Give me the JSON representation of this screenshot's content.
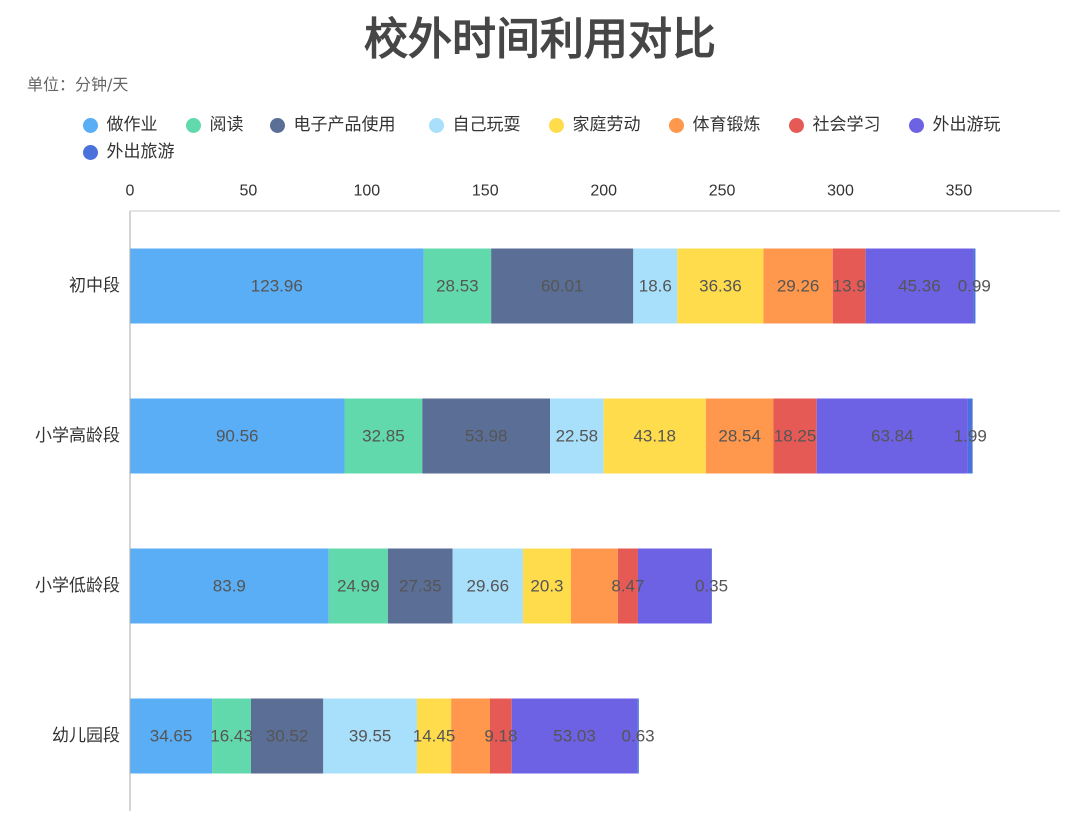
{
  "chart_data": {
    "type": "bar",
    "orientation": "horizontal",
    "stacked": true,
    "title": "校外时间利用对比",
    "unit_note": "单位：分钟/天",
    "categories": [
      "初中段",
      "小学高龄段",
      "小学低龄段",
      "幼儿园段"
    ],
    "xlim": [
      0,
      392.67
    ],
    "xticks": [
      0,
      50,
      100,
      150,
      200,
      250,
      300,
      350
    ],
    "x_axis_position": "top",
    "legend_position": "top-left",
    "grid": false,
    "series": [
      {
        "name": "做作业",
        "color": "#5AAEF5",
        "values": [
          123.96,
          90.56,
          83.9,
          34.65
        ]
      },
      {
        "name": "阅读",
        "color": "#62D9AD",
        "values": [
          28.53,
          32.85,
          24.99,
          16.43
        ]
      },
      {
        "name": "电子产品使用",
        "color": "#5B6E96",
        "values": [
          60.01,
          53.98,
          27.35,
          30.52
        ]
      },
      {
        "name": "自己玩耍",
        "color": "#A8DFFA",
        "values": [
          18.6,
          22.58,
          29.66,
          39.55
        ]
      },
      {
        "name": "家庭劳动",
        "color": "#FFDC4C",
        "values": [
          36.36,
          43.18,
          20.3,
          14.45
        ]
      },
      {
        "name": "体育锻炼",
        "color": "#FF974C",
        "values": [
          29.26,
          28.54,
          19.8,
          16.4
        ],
        "show_label": [
          true,
          true,
          false,
          false
        ]
      },
      {
        "name": "社会学习",
        "color": "#E65A56",
        "values": [
          13.9,
          18.25,
          8.47,
          9.18
        ]
      },
      {
        "name": "外出游玩",
        "color": "#6D61E4",
        "values": [
          45.36,
          63.84,
          30.9,
          53.03
        ],
        "show_label": [
          true,
          true,
          false,
          true
        ]
      },
      {
        "name": "外出旅游",
        "color": "#4A72DA",
        "values": [
          0.99,
          1.99,
          0.35,
          0.63
        ]
      }
    ]
  }
}
